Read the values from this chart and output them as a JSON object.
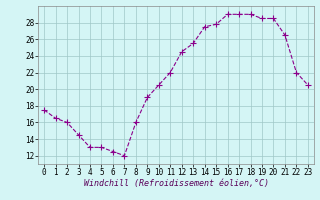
{
  "x": [
    0,
    1,
    2,
    3,
    4,
    5,
    6,
    7,
    8,
    9,
    10,
    11,
    12,
    13,
    14,
    15,
    16,
    17,
    18,
    19,
    20,
    21,
    22,
    23
  ],
  "y": [
    17.5,
    16.5,
    16.0,
    14.5,
    13.0,
    13.0,
    12.5,
    12.0,
    16.0,
    19.0,
    20.5,
    22.0,
    24.5,
    25.5,
    27.5,
    27.8,
    29.0,
    29.0,
    29.0,
    28.5,
    28.5,
    26.5,
    22.0,
    20.5
  ],
  "line_color": "#8B008B",
  "marker": "+",
  "markersize": 4,
  "linewidth": 0.8,
  "background_color": "#d4f5f5",
  "grid_color": "#a0c8c8",
  "xlabel": "Windchill (Refroidissement éolien,°C)",
  "xlabel_fontsize": 6.0,
  "ylabel_ticks": [
    12,
    14,
    16,
    18,
    20,
    22,
    24,
    26,
    28
  ],
  "ylim": [
    11.0,
    30.0
  ],
  "xlim": [
    -0.5,
    23.5
  ],
  "xtick_labels": [
    "0",
    "1",
    "2",
    "3",
    "4",
    "5",
    "6",
    "7",
    "8",
    "9",
    "10",
    "11",
    "12",
    "13",
    "14",
    "15",
    "16",
    "17",
    "18",
    "19",
    "20",
    "21",
    "22",
    "23"
  ],
  "tick_fontsize": 5.5,
  "xlabel_color": "#5a005a"
}
